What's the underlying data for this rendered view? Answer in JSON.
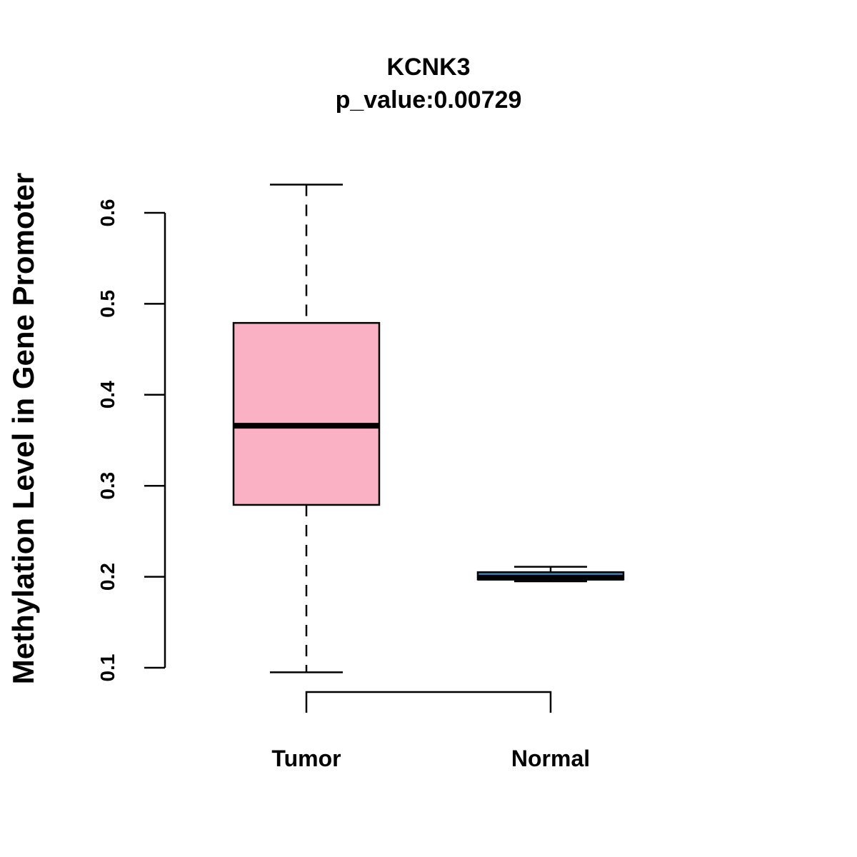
{
  "chart_data": {
    "type": "boxplot",
    "title": "KCNK3",
    "subtitle": "p_value:0.00729",
    "xlabel": "",
    "ylabel": "Methylation Level in Gene Promoter",
    "ylim": [
      0.05,
      0.65
    ],
    "yticks": [
      0.1,
      0.2,
      0.3,
      0.4,
      0.5,
      0.6
    ],
    "ytick_labels": [
      "0.1",
      "0.2",
      "0.3",
      "0.4",
      "0.5",
      "0.6"
    ],
    "grid": false,
    "categories": [
      "Tumor",
      "Normal"
    ],
    "boxes": [
      {
        "name": "Tumor",
        "whisker_low": 0.095,
        "q1": 0.279,
        "median": 0.366,
        "q3": 0.479,
        "whisker_high": 0.631,
        "color": "#FBB1C4"
      },
      {
        "name": "Normal",
        "whisker_low": 0.195,
        "q1": 0.197,
        "median": 0.199,
        "q3": 0.205,
        "whisker_high": 0.211,
        "color": "#4682B4"
      }
    ],
    "comparison_bracket": [
      "Tumor",
      "Normal"
    ]
  }
}
